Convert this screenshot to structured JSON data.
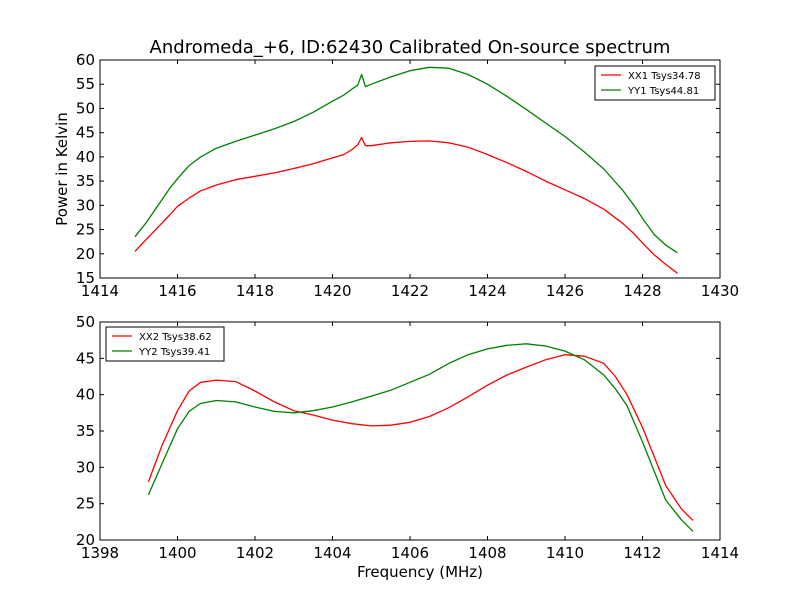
{
  "figure": {
    "title": "Andromeda_+6, ID:62430 Calibrated On-source spectrum"
  },
  "chart_data": [
    {
      "type": "line",
      "title": "Andromeda_+6, ID:62430 Calibrated On-source spectrum",
      "xlabel": "",
      "ylabel": "Power in Kelvin",
      "xlim": [
        1414,
        1430
      ],
      "ylim": [
        15,
        60
      ],
      "xticks": [
        1414,
        1416,
        1418,
        1420,
        1422,
        1424,
        1426,
        1428,
        1430
      ],
      "yticks": [
        15,
        20,
        25,
        30,
        35,
        40,
        45,
        50,
        55,
        60
      ],
      "grid": false,
      "legend_position": "top-right",
      "series": [
        {
          "name": "XX1 Tsys34.78",
          "color": "#ff0000",
          "x": [
            1414.9,
            1415.2,
            1415.5,
            1415.8,
            1416.0,
            1416.3,
            1416.6,
            1417.0,
            1417.5,
            1418.0,
            1418.5,
            1419.0,
            1419.5,
            1420.0,
            1420.3,
            1420.5,
            1420.65,
            1420.75,
            1420.85,
            1421.0,
            1421.5,
            1422.0,
            1422.5,
            1423.0,
            1423.5,
            1424.0,
            1424.5,
            1425.0,
            1425.5,
            1426.0,
            1426.5,
            1427.0,
            1427.5,
            1427.8,
            1428.0,
            1428.3,
            1428.6,
            1428.9
          ],
          "y": [
            20.5,
            23.0,
            25.5,
            28.0,
            29.8,
            31.5,
            33.0,
            34.2,
            35.3,
            36.0,
            36.7,
            37.6,
            38.6,
            39.8,
            40.5,
            41.5,
            42.5,
            44.0,
            42.3,
            42.3,
            42.9,
            43.2,
            43.3,
            42.9,
            42.0,
            40.5,
            38.8,
            37.0,
            35.0,
            33.2,
            31.4,
            29.2,
            26.2,
            24.0,
            22.2,
            19.8,
            17.8,
            16.0
          ]
        },
        {
          "name": "YY1 Tsys44.81",
          "color": "#008000",
          "x": [
            1414.9,
            1415.2,
            1415.5,
            1415.8,
            1416.0,
            1416.3,
            1416.6,
            1417.0,
            1417.5,
            1418.0,
            1418.5,
            1419.0,
            1419.5,
            1420.0,
            1420.3,
            1420.5,
            1420.65,
            1420.75,
            1420.85,
            1421.0,
            1421.5,
            1422.0,
            1422.5,
            1423.0,
            1423.5,
            1424.0,
            1424.5,
            1425.0,
            1425.5,
            1426.0,
            1426.5,
            1427.0,
            1427.5,
            1427.8,
            1428.0,
            1428.3,
            1428.6,
            1428.9
          ],
          "y": [
            23.5,
            26.5,
            30.0,
            33.5,
            35.5,
            38.2,
            40.0,
            41.8,
            43.2,
            44.5,
            45.8,
            47.3,
            49.2,
            51.5,
            52.8,
            54.0,
            54.8,
            57.0,
            54.5,
            55.0,
            56.5,
            57.8,
            58.5,
            58.3,
            57.0,
            55.0,
            52.5,
            49.8,
            47.0,
            44.2,
            41.0,
            37.5,
            33.0,
            29.8,
            27.3,
            24.0,
            21.8,
            20.2
          ]
        }
      ]
    },
    {
      "type": "line",
      "title": "",
      "xlabel": "Frequency (MHz)",
      "ylabel": "",
      "xlim": [
        1398,
        1414
      ],
      "ylim": [
        20,
        50
      ],
      "xticks": [
        1398,
        1400,
        1402,
        1404,
        1406,
        1408,
        1410,
        1412,
        1414
      ],
      "yticks": [
        20,
        25,
        30,
        35,
        40,
        45,
        50
      ],
      "grid": false,
      "legend_position": "top-left",
      "series": [
        {
          "name": "XX2 Tsys38.62",
          "color": "#ff0000",
          "x": [
            1399.25,
            1399.6,
            1400.0,
            1400.3,
            1400.6,
            1401.0,
            1401.5,
            1402.0,
            1402.5,
            1403.0,
            1403.5,
            1404.0,
            1404.5,
            1405.0,
            1405.5,
            1406.0,
            1406.5,
            1407.0,
            1407.5,
            1408.0,
            1408.5,
            1409.0,
            1409.5,
            1410.0,
            1410.5,
            1411.0,
            1411.3,
            1411.6,
            1412.0,
            1412.3,
            1412.6,
            1413.0,
            1413.3
          ],
          "y": [
            28.0,
            33.0,
            37.8,
            40.5,
            41.7,
            42.0,
            41.8,
            40.5,
            39.0,
            37.8,
            37.2,
            36.5,
            36.0,
            35.7,
            35.8,
            36.2,
            37.0,
            38.2,
            39.7,
            41.3,
            42.7,
            43.8,
            44.8,
            45.5,
            45.3,
            44.3,
            42.5,
            40.0,
            35.5,
            31.5,
            27.5,
            24.3,
            22.7
          ]
        },
        {
          "name": "YY2 Tsys39.41",
          "color": "#008000",
          "x": [
            1399.25,
            1399.6,
            1400.0,
            1400.3,
            1400.6,
            1401.0,
            1401.5,
            1402.0,
            1402.5,
            1403.0,
            1403.5,
            1404.0,
            1404.5,
            1405.0,
            1405.5,
            1406.0,
            1406.5,
            1407.0,
            1407.5,
            1408.0,
            1408.5,
            1409.0,
            1409.5,
            1410.0,
            1410.5,
            1411.0,
            1411.3,
            1411.6,
            1412.0,
            1412.3,
            1412.6,
            1413.0,
            1413.3
          ],
          "y": [
            26.2,
            30.5,
            35.3,
            37.7,
            38.8,
            39.2,
            39.0,
            38.3,
            37.7,
            37.5,
            37.8,
            38.3,
            39.0,
            39.8,
            40.6,
            41.7,
            42.8,
            44.3,
            45.5,
            46.3,
            46.8,
            47.0,
            46.7,
            46.0,
            44.8,
            42.7,
            40.8,
            38.5,
            33.5,
            29.5,
            25.5,
            22.8,
            21.2
          ]
        }
      ]
    }
  ]
}
